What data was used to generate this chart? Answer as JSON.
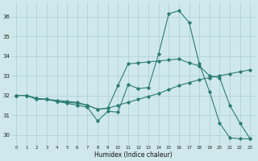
{
  "xlabel": "Humidex (Indice chaleur)",
  "xlim": [
    -0.5,
    23.5
  ],
  "ylim": [
    29.5,
    36.7
  ],
  "yticks": [
    30,
    31,
    32,
    33,
    34,
    35,
    36
  ],
  "xticks": [
    0,
    1,
    2,
    3,
    4,
    5,
    6,
    7,
    8,
    9,
    10,
    11,
    12,
    13,
    14,
    15,
    16,
    17,
    18,
    19,
    20,
    21,
    22,
    23
  ],
  "background_color": "#cfe8ec",
  "grid_color": "#aacdd4",
  "line_color": "#2d7d74",
  "line1_x": [
    0,
    1,
    2,
    3,
    4,
    5,
    6,
    7,
    8,
    9,
    10,
    11,
    12,
    13,
    14,
    15,
    16,
    17,
    18,
    19,
    20,
    21,
    22,
    23
  ],
  "line1_y": [
    32.0,
    32.0,
    31.8,
    31.8,
    31.7,
    31.6,
    31.5,
    31.4,
    30.7,
    31.2,
    31.15,
    32.55,
    32.35,
    32.4,
    34.1,
    36.15,
    36.3,
    35.7,
    33.6,
    32.2,
    30.6,
    29.85,
    29.8,
    29.8
  ],
  "line2_x": [
    0,
    1,
    2,
    3,
    4,
    5,
    6,
    7,
    8,
    9,
    10,
    11,
    12,
    13,
    14,
    15,
    16,
    17,
    18,
    19,
    20,
    21,
    22,
    23
  ],
  "line2_y": [
    32.0,
    32.0,
    31.85,
    31.8,
    31.7,
    31.65,
    31.6,
    31.5,
    31.3,
    31.35,
    31.5,
    31.65,
    31.8,
    31.95,
    32.1,
    32.3,
    32.5,
    32.65,
    32.8,
    32.9,
    33.0,
    33.1,
    33.2,
    33.3
  ],
  "line3_x": [
    0,
    1,
    2,
    3,
    4,
    5,
    6,
    7,
    8,
    9,
    10,
    11,
    12,
    13,
    14,
    15,
    16,
    17,
    18,
    19,
    20,
    21,
    22,
    23
  ],
  "line3_y": [
    32.0,
    32.0,
    31.85,
    31.8,
    31.75,
    31.7,
    31.65,
    31.5,
    31.3,
    31.35,
    32.5,
    33.6,
    33.65,
    33.7,
    33.75,
    33.8,
    33.85,
    33.65,
    33.5,
    33.0,
    32.9,
    31.5,
    30.6,
    29.8
  ]
}
